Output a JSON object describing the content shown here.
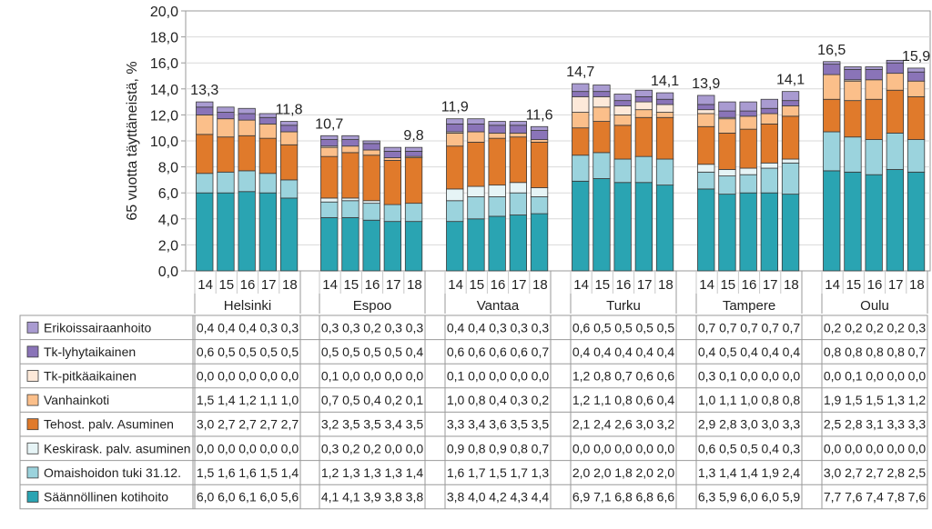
{
  "chart_data": {
    "type": "bar",
    "stacked": true,
    "ylabel": "65 vuotta täyttäneistä, %",
    "ylim": [
      0,
      20
    ],
    "ytick_step": 2,
    "ytick_labels": [
      "0,0",
      "2,0",
      "4,0",
      "6,0",
      "8,0",
      "10,0",
      "12,0",
      "14,0",
      "16,0",
      "18,0",
      "20,0"
    ],
    "years": [
      "14",
      "15",
      "16",
      "17",
      "18"
    ],
    "cities": [
      "Helsinki",
      "Espoo",
      "Vantaa",
      "Turku",
      "Tampere",
      "Oulu"
    ],
    "totals": [
      {
        "first": "13,3",
        "last": "11,8"
      },
      {
        "first": "10,7",
        "last": "9,8"
      },
      {
        "first": "11,9",
        "last": "11,6"
      },
      {
        "first": "14,7",
        "last": "14,1"
      },
      {
        "first": "13,9",
        "last": "14,1"
      },
      {
        "first": "16,5",
        "last": "15,9"
      }
    ],
    "series": [
      {
        "name": "Erikoissairaanhoito",
        "color": "#a99bd1",
        "values": [
          [
            0.4,
            0.4,
            0.4,
            0.3,
            0.3
          ],
          [
            0.3,
            0.3,
            0.2,
            0.3,
            0.3
          ],
          [
            0.4,
            0.4,
            0.3,
            0.3,
            0.3
          ],
          [
            0.6,
            0.5,
            0.5,
            0.5,
            0.5
          ],
          [
            0.7,
            0.7,
            0.7,
            0.7,
            0.7
          ],
          [
            0.2,
            0.2,
            0.2,
            0.2,
            0.3
          ]
        ]
      },
      {
        "name": "Tk-lyhytaikainen",
        "color": "#8a74b8",
        "values": [
          [
            0.6,
            0.5,
            0.5,
            0.5,
            0.5
          ],
          [
            0.5,
            0.5,
            0.5,
            0.5,
            0.4
          ],
          [
            0.6,
            0.6,
            0.6,
            0.6,
            0.7
          ],
          [
            0.4,
            0.4,
            0.4,
            0.4,
            0.4
          ],
          [
            0.4,
            0.5,
            0.4,
            0.4,
            0.4
          ],
          [
            0.8,
            0.8,
            0.8,
            0.8,
            0.7
          ]
        ]
      },
      {
        "name": "Tk-pitkäaikainen",
        "color": "#fde9d9",
        "values": [
          [
            0.0,
            0.0,
            0.0,
            0.0,
            0.0
          ],
          [
            0.1,
            0.0,
            0.0,
            0.0,
            0.0
          ],
          [
            0.1,
            0.0,
            0.0,
            0.0,
            0.0
          ],
          [
            1.2,
            0.8,
            0.7,
            0.6,
            0.6
          ],
          [
            0.3,
            0.1,
            0.0,
            0.0,
            0.0
          ],
          [
            0.0,
            0.1,
            0.0,
            0.0,
            0.0
          ]
        ]
      },
      {
        "name": "Vanhainkoti",
        "color": "#fbbf8a",
        "values": [
          [
            1.5,
            1.4,
            1.2,
            1.1,
            1.0
          ],
          [
            0.7,
            0.5,
            0.4,
            0.2,
            0.1
          ],
          [
            1.0,
            0.8,
            0.4,
            0.3,
            0.2
          ],
          [
            1.2,
            1.1,
            0.8,
            0.6,
            0.4
          ],
          [
            1.0,
            1.1,
            1.0,
            0.8,
            0.8
          ],
          [
            1.9,
            1.5,
            1.5,
            1.3,
            1.2
          ]
        ]
      },
      {
        "name": "Tehost. palv. Asuminen",
        "color": "#e07a2b",
        "values": [
          [
            3.0,
            2.7,
            2.7,
            2.7,
            2.7
          ],
          [
            3.2,
            3.5,
            3.5,
            3.4,
            3.5
          ],
          [
            3.3,
            3.4,
            3.6,
            3.5,
            3.5
          ],
          [
            2.1,
            2.4,
            2.6,
            3.0,
            3.2
          ],
          [
            2.9,
            2.8,
            3.0,
            3.0,
            3.3
          ],
          [
            2.5,
            2.8,
            3.1,
            3.3,
            3.3
          ]
        ]
      },
      {
        "name": "Keskirask. palv. asuminen",
        "color": "#e6f4f6",
        "values": [
          [
            0.0,
            0.0,
            0.0,
            0.0,
            0.0
          ],
          [
            0.3,
            0.2,
            0.2,
            0.0,
            0.0
          ],
          [
            0.9,
            0.8,
            0.9,
            0.8,
            0.7
          ],
          [
            0.0,
            0.0,
            0.0,
            0.0,
            0.0
          ],
          [
            0.6,
            0.5,
            0.5,
            0.4,
            0.3
          ],
          [
            0.0,
            0.0,
            0.0,
            0.0,
            0.0
          ]
        ]
      },
      {
        "name": "Omaishoidon tuki 31.12.",
        "color": "#9bd3dd",
        "values": [
          [
            1.5,
            1.6,
            1.6,
            1.5,
            1.4
          ],
          [
            1.2,
            1.3,
            1.3,
            1.3,
            1.4
          ],
          [
            1.6,
            1.7,
            1.5,
            1.7,
            1.3
          ],
          [
            2.0,
            2.0,
            1.8,
            2.0,
            2.0
          ],
          [
            1.3,
            1.4,
            1.4,
            1.9,
            2.4
          ],
          [
            3.0,
            2.7,
            2.7,
            2.8,
            2.5
          ]
        ]
      },
      {
        "name": "Säännöllinen kotihoito",
        "color": "#2aa4b2",
        "values": [
          [
            6.0,
            6.0,
            6.1,
            6.0,
            5.6
          ],
          [
            4.1,
            4.1,
            3.9,
            3.8,
            3.8
          ],
          [
            3.8,
            4.0,
            4.2,
            4.3,
            4.4
          ],
          [
            6.9,
            7.1,
            6.8,
            6.8,
            6.6
          ],
          [
            6.3,
            5.9,
            6.0,
            6.0,
            5.9
          ],
          [
            7.7,
            7.6,
            7.4,
            7.8,
            7.6
          ]
        ]
      }
    ],
    "table_cells": [
      [
        [
          "0,4",
          "0,4",
          "0,4",
          "0,3",
          "0,3"
        ],
        [
          "0,3",
          "0,3",
          "0,2",
          "0,3",
          "0,3"
        ],
        [
          "0,4",
          "0,4",
          "0,3",
          "0,3",
          "0,3"
        ],
        [
          "0,6",
          "0,5",
          "0,5",
          "0,5",
          "0,5"
        ],
        [
          "0,7",
          "0,7",
          "0,7",
          "0,7",
          "0,7"
        ],
        [
          "0,2",
          "0,2",
          "0,2",
          "0,2",
          "0,3"
        ]
      ],
      [
        [
          "0,6",
          "0,5",
          "0,5",
          "0,5",
          "0,5"
        ],
        [
          "0,5",
          "0,5",
          "0,5",
          "0,5",
          "0,4"
        ],
        [
          "0,6",
          "0,6",
          "0,6",
          "0,6",
          "0,7"
        ],
        [
          "0,4",
          "0,4",
          "0,4",
          "0,4",
          "0,4"
        ],
        [
          "0,4",
          "0,5",
          "0,4",
          "0,4",
          "0,4"
        ],
        [
          "0,8",
          "0,8",
          "0,8",
          "0,8",
          "0,7"
        ]
      ],
      [
        [
          "0,0",
          "0,0",
          "0,0",
          "0,0",
          "0,0"
        ],
        [
          "0,1",
          "0,0",
          "0,0",
          "0,0",
          "0,0"
        ],
        [
          "0,1",
          "0,0",
          "0,0",
          "0,0",
          "0,0"
        ],
        [
          "1,2",
          "0,8",
          "0,7",
          "0,6",
          "0,6"
        ],
        [
          "0,3",
          "0,1",
          "0,0",
          "0,0",
          "0,0"
        ],
        [
          "0,0",
          "0,1",
          "0,0",
          "0,0",
          "0,0"
        ]
      ],
      [
        [
          "1,5",
          "1,4",
          "1,2",
          "1,1",
          "1,0"
        ],
        [
          "0,7",
          "0,5",
          "0,4",
          "0,2",
          "0,1"
        ],
        [
          "1,0",
          "0,8",
          "0,4",
          "0,3",
          "0,2"
        ],
        [
          "1,2",
          "1,1",
          "0,8",
          "0,6",
          "0,4"
        ],
        [
          "1,0",
          "1,1",
          "1,0",
          "0,8",
          "0,8"
        ],
        [
          "1,9",
          "1,5",
          "1,5",
          "1,3",
          "1,2"
        ]
      ],
      [
        [
          "3,0",
          "2,7",
          "2,7",
          "2,7",
          "2,7"
        ],
        [
          "3,2",
          "3,5",
          "3,5",
          "3,4",
          "3,5"
        ],
        [
          "3,3",
          "3,4",
          "3,6",
          "3,5",
          "3,5"
        ],
        [
          "2,1",
          "2,4",
          "2,6",
          "3,0",
          "3,2"
        ],
        [
          "2,9",
          "2,8",
          "3,0",
          "3,0",
          "3,3"
        ],
        [
          "2,5",
          "2,8",
          "3,1",
          "3,3",
          "3,3"
        ]
      ],
      [
        [
          "0,0",
          "0,0",
          "0,0",
          "0,0",
          "0,0"
        ],
        [
          "0,3",
          "0,2",
          "0,2",
          "0,0",
          "0,0"
        ],
        [
          "0,9",
          "0,8",
          "0,9",
          "0,8",
          "0,7"
        ],
        [
          "0,0",
          "0,0",
          "0,0",
          "0,0",
          "0,0"
        ],
        [
          "0,6",
          "0,5",
          "0,5",
          "0,4",
          "0,3"
        ],
        [
          "0,0",
          "0,0",
          "0,0",
          "0,0",
          "0,0"
        ]
      ],
      [
        [
          "1,5",
          "1,6",
          "1,6",
          "1,5",
          "1,4"
        ],
        [
          "1,2",
          "1,3",
          "1,3",
          "1,3",
          "1,4"
        ],
        [
          "1,6",
          "1,7",
          "1,5",
          "1,7",
          "1,3"
        ],
        [
          "2,0",
          "2,0",
          "1,8",
          "2,0",
          "2,0"
        ],
        [
          "1,3",
          "1,4",
          "1,4",
          "1,9",
          "2,4"
        ],
        [
          "3,0",
          "2,7",
          "2,7",
          "2,8",
          "2,5"
        ]
      ],
      [
        [
          "6,0",
          "6,0",
          "6,1",
          "6,0",
          "5,6"
        ],
        [
          "4,1",
          "4,1",
          "3,9",
          "3,8",
          "3,8"
        ],
        [
          "3,8",
          "4,0",
          "4,2",
          "4,3",
          "4,4"
        ],
        [
          "6,9",
          "7,1",
          "6,8",
          "6,8",
          "6,6"
        ],
        [
          "6,3",
          "5,9",
          "6,0",
          "6,0",
          "5,9"
        ],
        [
          "7,7",
          "7,6",
          "7,4",
          "7,8",
          "7,6"
        ]
      ]
    ]
  }
}
